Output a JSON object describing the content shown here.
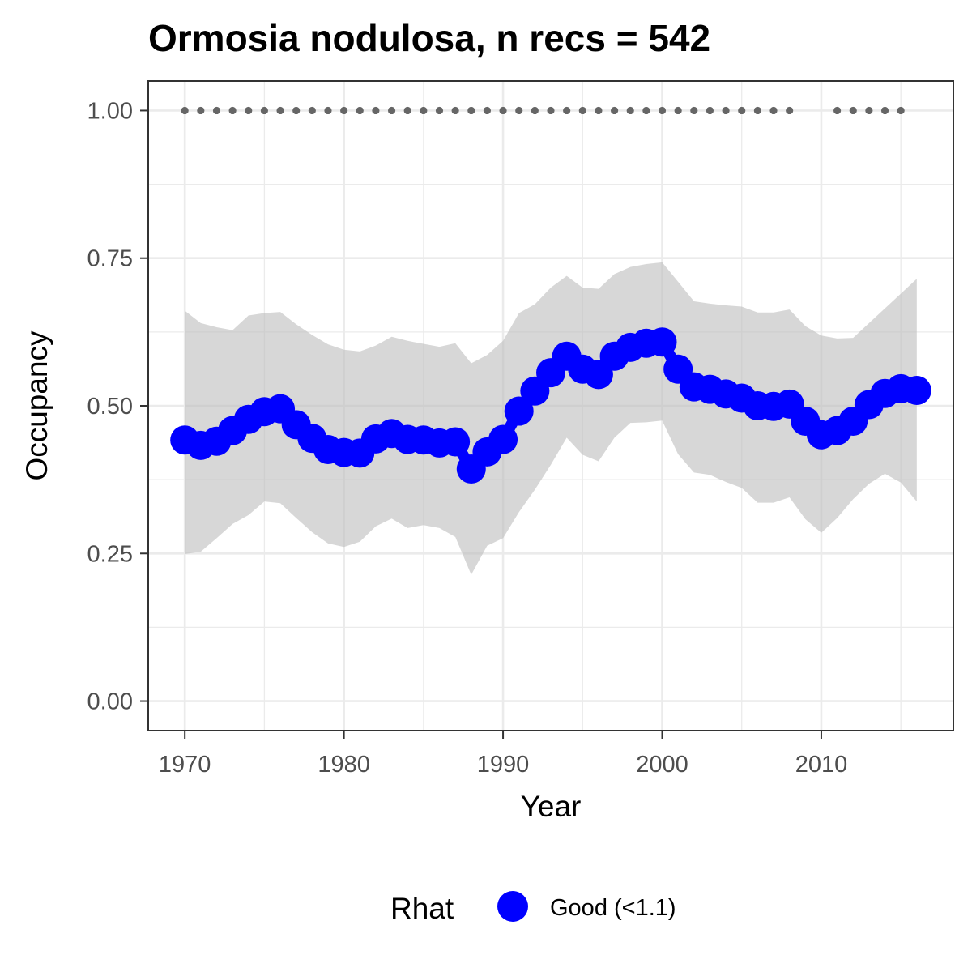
{
  "chart_data": {
    "type": "line",
    "title": "Ormosia nodulosa, n recs = 542",
    "xlabel": "Year",
    "ylabel": "Occupancy",
    "xlim": [
      1967.7,
      2018.3
    ],
    "ylim": [
      -0.05,
      1.05
    ],
    "x_ticks": [
      1970,
      1980,
      1990,
      2000,
      2010
    ],
    "x_tick_labels": [
      "1970",
      "1980",
      "1990",
      "2000",
      "2010"
    ],
    "y_ticks": [
      0,
      0.25,
      0.5,
      0.75,
      1.0
    ],
    "y_tick_labels": [
      "0.00",
      "0.25",
      "0.50",
      "0.75",
      "1.00"
    ],
    "grid": true,
    "years": [
      1970,
      1971,
      1972,
      1973,
      1974,
      1975,
      1976,
      1977,
      1978,
      1979,
      1980,
      1981,
      1982,
      1983,
      1984,
      1985,
      1986,
      1987,
      1988,
      1989,
      1990,
      1991,
      1992,
      1993,
      1994,
      1995,
      1996,
      1997,
      1998,
      1999,
      2000,
      2001,
      2002,
      2003,
      2004,
      2005,
      2006,
      2007,
      2008,
      2009,
      2010,
      2011,
      2012,
      2013,
      2014,
      2015,
      2016
    ],
    "mean": [
      0.442,
      0.433,
      0.44,
      0.458,
      0.477,
      0.49,
      0.495,
      0.468,
      0.445,
      0.426,
      0.421,
      0.42,
      0.444,
      0.453,
      0.443,
      0.442,
      0.437,
      0.439,
      0.393,
      0.422,
      0.443,
      0.491,
      0.525,
      0.556,
      0.584,
      0.562,
      0.553,
      0.584,
      0.599,
      0.606,
      0.608,
      0.562,
      0.532,
      0.528,
      0.52,
      0.513,
      0.5,
      0.499,
      0.503,
      0.474,
      0.451,
      0.458,
      0.474,
      0.502,
      0.521,
      0.529,
      0.526
    ],
    "upper": [
      0.661,
      0.64,
      0.633,
      0.628,
      0.653,
      0.657,
      0.659,
      0.638,
      0.62,
      0.604,
      0.595,
      0.592,
      0.602,
      0.617,
      0.61,
      0.605,
      0.6,
      0.606,
      0.572,
      0.586,
      0.61,
      0.657,
      0.672,
      0.7,
      0.72,
      0.7,
      0.698,
      0.723,
      0.735,
      0.74,
      0.743,
      0.71,
      0.677,
      0.673,
      0.67,
      0.668,
      0.658,
      0.658,
      0.663,
      0.635,
      0.619,
      0.614,
      0.615,
      0.64,
      0.665,
      0.69,
      0.715
    ],
    "lower": [
      0.249,
      0.253,
      0.276,
      0.3,
      0.315,
      0.338,
      0.335,
      0.31,
      0.286,
      0.267,
      0.261,
      0.27,
      0.296,
      0.309,
      0.293,
      0.298,
      0.293,
      0.278,
      0.214,
      0.263,
      0.276,
      0.32,
      0.358,
      0.4,
      0.446,
      0.417,
      0.406,
      0.446,
      0.471,
      0.472,
      0.475,
      0.418,
      0.387,
      0.383,
      0.371,
      0.361,
      0.336,
      0.336,
      0.345,
      0.308,
      0.285,
      0.31,
      0.342,
      0.368,
      0.385,
      0.37,
      0.338
    ],
    "record_years": [
      1970,
      1971,
      1972,
      1973,
      1974,
      1975,
      1976,
      1977,
      1978,
      1979,
      1980,
      1981,
      1982,
      1983,
      1984,
      1985,
      1986,
      1987,
      1988,
      1989,
      1990,
      1991,
      1992,
      1993,
      1994,
      1995,
      1996,
      1997,
      1998,
      1999,
      2000,
      2001,
      2002,
      2003,
      2004,
      2005,
      2006,
      2007,
      2008,
      2011,
      2012,
      2013,
      2014,
      2015
    ],
    "record_value": 1.0,
    "legend": {
      "title": "Rhat",
      "placement": "bottom",
      "entries": [
        {
          "label": "Good (<1.1)",
          "color": "#0000ff"
        }
      ]
    },
    "colors": {
      "line": "#0000ff",
      "ribbon": "#bfbfbf",
      "records": "#666666",
      "grid": "#ebebeb",
      "panel_border": "#333333"
    }
  }
}
